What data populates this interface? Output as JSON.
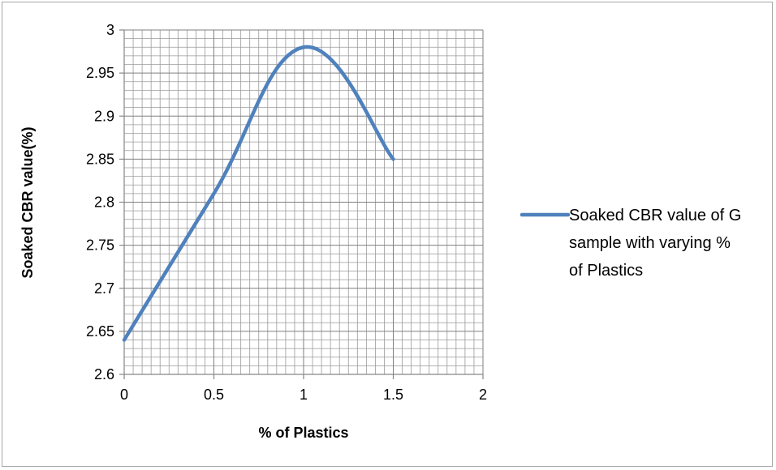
{
  "chart_data": {
    "type": "line",
    "xlabel": "% of Plastics",
    "ylabel": "Soaked CBR value(%)",
    "xlim": [
      0,
      2
    ],
    "ylim": [
      2.6,
      3
    ],
    "x_ticks": [
      "0",
      "0.5",
      "1",
      "1.5",
      "2"
    ],
    "y_ticks": [
      "2.6",
      "2.65",
      "2.7",
      "2.75",
      "2.8",
      "2.85",
      "2.9",
      "2.95",
      "3"
    ],
    "grid": true,
    "legend_position": "right",
    "smooth": true,
    "colors": {
      "series": "#4f81bd",
      "grid": "#9a9a9a",
      "axis": "#868686"
    },
    "series": [
      {
        "name": "Soaked CBR value of G sample with varying % of Plastics",
        "x": [
          0,
          0.5,
          1,
          1.5
        ],
        "y": [
          2.64,
          2.81,
          2.98,
          2.85
        ]
      }
    ]
  },
  "legend": {
    "lines": [
      "Soaked CBR value of G",
      "sample with varying %",
      "of Plastics"
    ]
  }
}
